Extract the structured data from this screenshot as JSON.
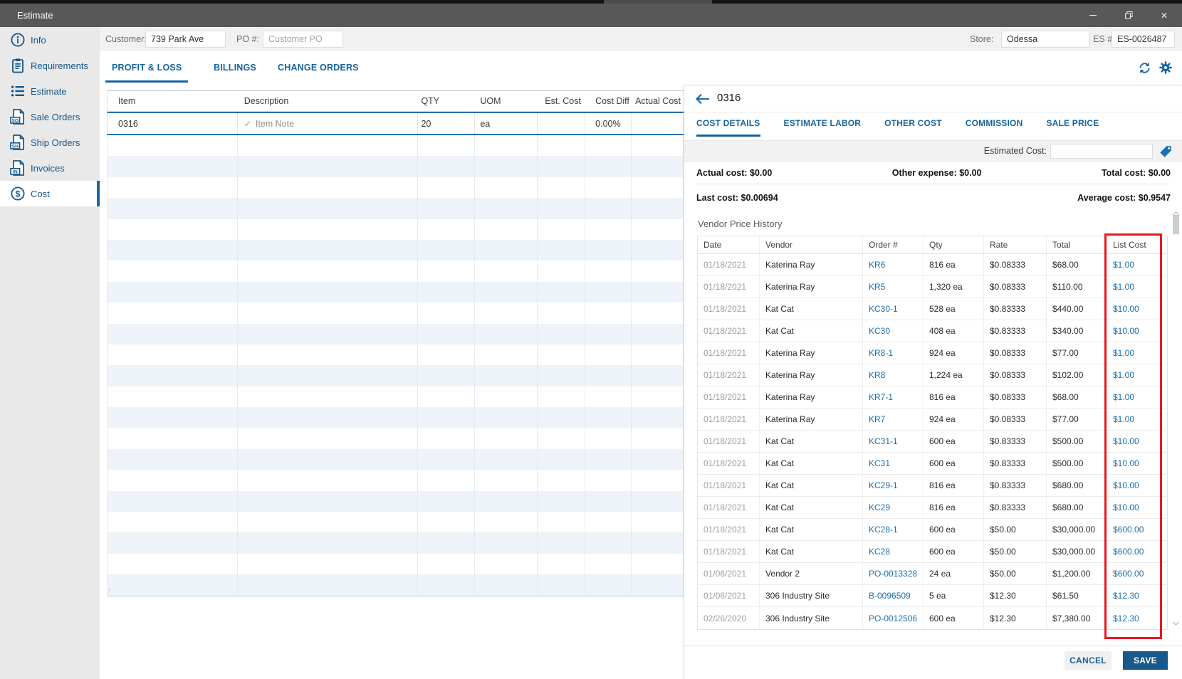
{
  "window": {
    "title": "Estimate",
    "controls": {
      "minimize": "minimize",
      "restore": "restore",
      "close": "✕"
    }
  },
  "sidebar": {
    "items": [
      {
        "label": "Info",
        "icon": "info-icon",
        "selected": false
      },
      {
        "label": "Requirements",
        "icon": "clipboard-icon",
        "selected": false
      },
      {
        "label": "Estimate",
        "icon": "list-icon",
        "selected": false
      },
      {
        "label": "Sale Orders",
        "icon": "doc-so-icon",
        "badge": "SO",
        "selected": false
      },
      {
        "label": "Ship Orders",
        "icon": "doc-sh-icon",
        "badge": "SH",
        "selected": false
      },
      {
        "label": "Invoices",
        "icon": "doc-in-icon",
        "badge": "IN",
        "selected": false
      },
      {
        "label": "Cost",
        "icon": "dollar-icon",
        "selected": true
      }
    ]
  },
  "form": {
    "customer_label": "Customer:",
    "customer_value": "739 Park Ave",
    "po_label": "PO #:",
    "po_placeholder": "Customer PO",
    "store_label": "Store:",
    "store_value": "Odessa",
    "es_label": "ES #:",
    "es_value": "ES-0026487"
  },
  "main_tabs": [
    {
      "label": "PROFIT & LOSS",
      "active": true
    },
    {
      "label": "BILLINGS",
      "active": false
    },
    {
      "label": "CHANGE ORDERS",
      "active": false
    }
  ],
  "items_table": {
    "columns": [
      "Item",
      "Description",
      "QTY",
      "UOM",
      "Est. Cost",
      "Cost Diff",
      "Actual Cost"
    ],
    "row": {
      "item": "0316",
      "note_check": "✓",
      "description": "Item Note",
      "qty": "20",
      "uom": "ea",
      "est_cost": "",
      "cost_diff": "0.00%",
      "actual_cost": ""
    },
    "empty_row_count": 22
  },
  "detail_panel": {
    "title": "0316",
    "tabs": [
      {
        "label": "COST DETAILS",
        "active": true
      },
      {
        "label": "ESTIMATE LABOR",
        "active": false
      },
      {
        "label": "OTHER COST",
        "active": false
      },
      {
        "label": "COMMISSION",
        "active": false
      },
      {
        "label": "SALE PRICE",
        "active": false
      }
    ],
    "estimated_cost_label": "Estimated Cost:",
    "estimated_cost_value": "",
    "summary": {
      "actual_cost": "Actual cost: $0.00",
      "other_expense": "Other expense: $0.00",
      "total_cost": "Total cost: $0.00",
      "last_cost": "Last cost: $0.00694",
      "average_cost": "Average cost: $0.9547"
    },
    "vendor_history": {
      "title": "Vendor Price History",
      "columns": [
        "Date",
        "Vendor",
        "Order #",
        "Qty",
        "Rate",
        "Total",
        "List Cost"
      ],
      "highlighted_column": "List Cost",
      "rows": [
        [
          "01/18/2021",
          "Katerina Ray",
          "KR6",
          "816 ea",
          "$0.08333",
          "$68.00",
          "$1.00"
        ],
        [
          "01/18/2021",
          "Katerina Ray",
          "KR5",
          "1,320 ea",
          "$0.08333",
          "$110.00",
          "$1.00"
        ],
        [
          "01/18/2021",
          "Kat Cat",
          "KC30-1",
          "528 ea",
          "$0.83333",
          "$440.00",
          "$10.00"
        ],
        [
          "01/18/2021",
          "Kat Cat",
          "KC30",
          "408 ea",
          "$0.83333",
          "$340.00",
          "$10.00"
        ],
        [
          "01/18/2021",
          "Katerina Ray",
          "KR8-1",
          "924 ea",
          "$0.08333",
          "$77.00",
          "$1.00"
        ],
        [
          "01/18/2021",
          "Katerina Ray",
          "KR8",
          "1,224 ea",
          "$0.08333",
          "$102.00",
          "$1.00"
        ],
        [
          "01/18/2021",
          "Katerina Ray",
          "KR7-1",
          "816 ea",
          "$0.08333",
          "$68.00",
          "$1.00"
        ],
        [
          "01/18/2021",
          "Katerina Ray",
          "KR7",
          "924 ea",
          "$0.08333",
          "$77.00",
          "$1.00"
        ],
        [
          "01/18/2021",
          "Kat Cat",
          "KC31-1",
          "600 ea",
          "$0.83333",
          "$500.00",
          "$10.00"
        ],
        [
          "01/18/2021",
          "Kat Cat",
          "KC31",
          "600 ea",
          "$0.83333",
          "$500.00",
          "$10.00"
        ],
        [
          "01/18/2021",
          "Kat Cat",
          "KC29-1",
          "816 ea",
          "$0.83333",
          "$680.00",
          "$10.00"
        ],
        [
          "01/18/2021",
          "Kat Cat",
          "KC29",
          "816 ea",
          "$0.83333",
          "$680.00",
          "$10.00"
        ],
        [
          "01/18/2021",
          "Kat Cat",
          "KC28-1",
          "600 ea",
          "$50.00",
          "$30,000.00",
          "$600.00"
        ],
        [
          "01/18/2021",
          "Kat Cat",
          "KC28",
          "600 ea",
          "$50.00",
          "$30,000.00",
          "$600.00"
        ],
        [
          "01/06/2021",
          "Vendor 2",
          "PO-0013328",
          "24 ea",
          "$50.00",
          "$1,200.00",
          "$600.00"
        ],
        [
          "01/06/2021",
          "306 Industry Site",
          "B-0096509",
          "5 ea",
          "$12.30",
          "$61.50",
          "$12.30"
        ],
        [
          "02/26/2020",
          "306 Industry Site",
          "PO-0012506",
          "600 ea",
          "$12.30",
          "$7,380.00",
          "$12.30"
        ]
      ]
    },
    "footer": {
      "cancel_label": "CANCEL",
      "save_label": "SAVE"
    }
  },
  "colors": {
    "accent_blue": "#16639e",
    "link_blue": "#1b6fae",
    "sidebar_blue": "#14568b",
    "highlight_red": "#e8191f",
    "save_button_bg": "#17588d",
    "titlebar_gray": "#585858",
    "stripe_blue": "#edf3f8"
  }
}
